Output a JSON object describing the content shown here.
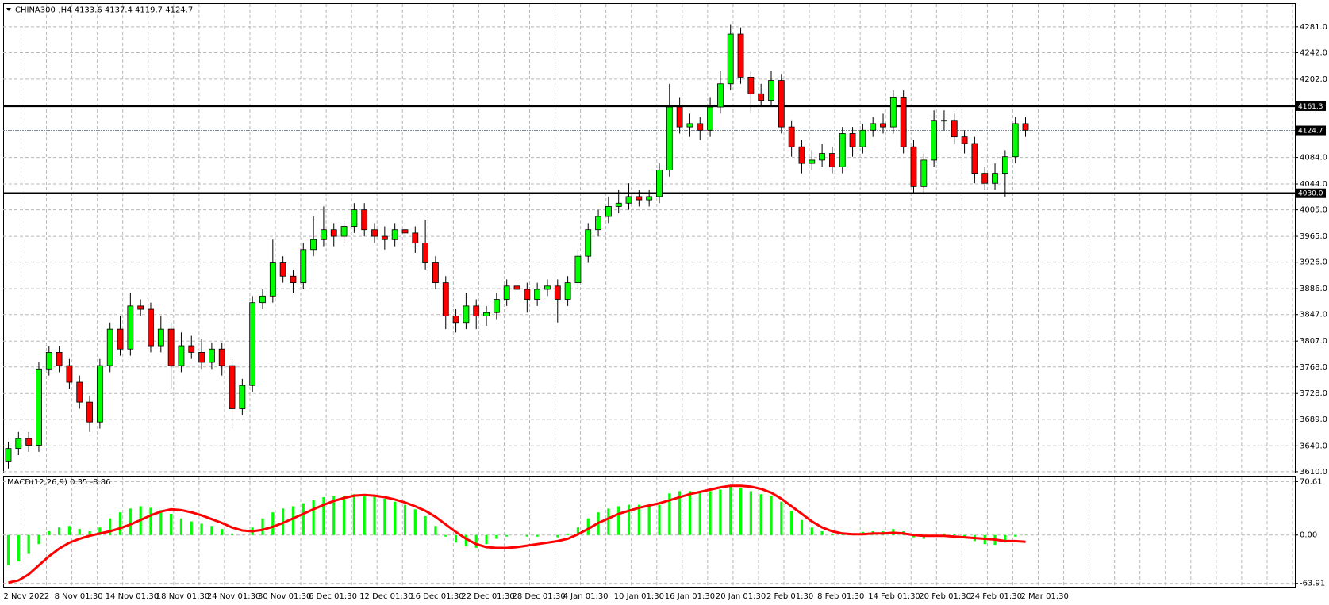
{
  "chart_data": [
    {
      "type": "candlestick",
      "title": "CHINA300-,H4  4133.6 4137.4 4119.7 4124.7",
      "categories": [
        "2 Nov 2022",
        null,
        null,
        null,
        null,
        "8 Nov 01:30",
        null,
        null,
        null,
        null,
        "14 Nov 01:30",
        null,
        null,
        null,
        null,
        "18 Nov 01:30",
        null,
        null,
        null,
        null,
        "24 Nov 01:30",
        null,
        null,
        null,
        null,
        "30 Nov 01:30",
        null,
        null,
        null,
        null,
        "6 Dec 01:30",
        null,
        null,
        null,
        null,
        "12 Dec 01:30",
        null,
        null,
        null,
        null,
        "16 Dec 01:30",
        null,
        null,
        null,
        null,
        "22 Dec 01:30",
        null,
        null,
        null,
        null,
        "28 Dec 01:30",
        null,
        null,
        null,
        null,
        "4 Jan 01:30",
        null,
        null,
        null,
        null,
        "10 Jan 01:30",
        null,
        null,
        null,
        null,
        "16 Jan 01:30",
        null,
        null,
        null,
        null,
        "20 Jan 01:30",
        null,
        null,
        null,
        null,
        "2 Feb 01:30",
        null,
        null,
        null,
        null,
        "8 Feb 01:30",
        null,
        null,
        null,
        null,
        "14 Feb 01:30",
        null,
        null,
        null,
        null,
        "20 Feb 01:30",
        null,
        null,
        null,
        null,
        "24 Feb 01:30",
        null,
        null,
        null,
        null,
        "2 Mar 01:30"
      ],
      "open": [
        3625,
        3645,
        3660,
        3650,
        3765,
        3790,
        3770,
        3745,
        3715,
        3685,
        3770,
        3825,
        3795,
        3860,
        3855,
        3800,
        3825,
        3770,
        3800,
        3790,
        3775,
        3795,
        3770,
        3705,
        3740,
        3865,
        3875,
        3925,
        3905,
        3895,
        3945,
        3960,
        3975,
        3965,
        3980,
        4005,
        3975,
        3965,
        3960,
        3975,
        3970,
        3955,
        3925,
        3895,
        3845,
        3835,
        3860,
        3845,
        3850,
        3870,
        3890,
        3885,
        3870,
        3885,
        3890,
        3870,
        3895,
        3935,
        3975,
        3995,
        4010,
        4015,
        4025,
        4020,
        4025,
        4065,
        4160,
        4130,
        4135,
        4125,
        4160,
        4195,
        4270,
        4205,
        4180,
        4170,
        4200,
        4130,
        4100,
        4075,
        4080,
        4090,
        4070,
        4120,
        4100,
        4125,
        4135,
        4130,
        4175,
        4100,
        4040,
        4080,
        4140,
        4140,
        4115,
        4105,
        4060,
        4045,
        4060,
        4085,
        4135
      ],
      "high": [
        3655,
        3670,
        3670,
        3775,
        3800,
        3800,
        3780,
        3755,
        3725,
        3780,
        3835,
        3845,
        3880,
        3870,
        3865,
        3845,
        3835,
        3820,
        3815,
        3810,
        3805,
        3805,
        3780,
        3750,
        3875,
        3885,
        3960,
        3935,
        3915,
        3955,
        3995,
        4010,
        3985,
        3990,
        4015,
        4015,
        3985,
        3980,
        3985,
        3985,
        3980,
        3990,
        3935,
        3905,
        3855,
        3880,
        3870,
        3860,
        3880,
        3900,
        3900,
        3895,
        3895,
        3900,
        3900,
        3905,
        3945,
        3985,
        4005,
        4025,
        4035,
        4045,
        4035,
        4035,
        4075,
        4195,
        4175,
        4150,
        4145,
        4175,
        4215,
        4285,
        4280,
        4215,
        4195,
        4215,
        4210,
        4140,
        4110,
        4095,
        4105,
        4100,
        4130,
        4130,
        4135,
        4145,
        4150,
        4185,
        4185,
        4110,
        4090,
        4155,
        4155,
        4150,
        4125,
        4115,
        4070,
        4075,
        4095,
        4145,
        4145
      ],
      "low": [
        3615,
        3635,
        3640,
        3640,
        3755,
        3760,
        3735,
        3705,
        3670,
        3675,
        3760,
        3785,
        3785,
        3845,
        3790,
        3790,
        3735,
        3760,
        3780,
        3765,
        3765,
        3755,
        3675,
        3695,
        3730,
        3855,
        3865,
        3895,
        3880,
        3885,
        3935,
        3950,
        3950,
        3955,
        3970,
        3965,
        3955,
        3945,
        3950,
        3955,
        3940,
        3915,
        3885,
        3825,
        3820,
        3825,
        3825,
        3830,
        3840,
        3860,
        3875,
        3850,
        3860,
        3875,
        3835,
        3860,
        3885,
        3925,
        3965,
        3985,
        4000,
        4005,
        4010,
        4010,
        4015,
        4055,
        4120,
        4115,
        4110,
        4115,
        4150,
        4185,
        4195,
        4150,
        4160,
        4160,
        4120,
        4085,
        4060,
        4065,
        4070,
        4060,
        4060,
        4085,
        4090,
        4115,
        4120,
        4120,
        4090,
        4030,
        4030,
        4070,
        4125,
        4105,
        4090,
        4045,
        4035,
        4035,
        4025,
        4075,
        4115
      ],
      "close": [
        3645,
        3660,
        3650,
        3765,
        3790,
        3770,
        3745,
        3715,
        3685,
        3770,
        3825,
        3795,
        3860,
        3855,
        3800,
        3825,
        3770,
        3800,
        3790,
        3775,
        3795,
        3770,
        3705,
        3740,
        3865,
        3875,
        3925,
        3905,
        3895,
        3945,
        3960,
        3975,
        3965,
        3980,
        4005,
        3975,
        3965,
        3960,
        3975,
        3970,
        3955,
        3925,
        3895,
        3845,
        3835,
        3860,
        3845,
        3850,
        3870,
        3890,
        3885,
        3870,
        3885,
        3890,
        3870,
        3895,
        3935,
        3975,
        3995,
        4010,
        4015,
        4025,
        4020,
        4025,
        4065,
        4160,
        4130,
        4135,
        4125,
        4160,
        4195,
        4270,
        4205,
        4180,
        4170,
        4200,
        4130,
        4100,
        4075,
        4080,
        4090,
        4070,
        4120,
        4100,
        4125,
        4135,
        4130,
        4175,
        4100,
        4040,
        4080,
        4140,
        4140,
        4115,
        4105,
        4060,
        4045,
        4060,
        4085,
        4135,
        4125
      ],
      "up_color": "#00ff00",
      "down_color": "#ff0000",
      "ylim": [
        3608.7,
        4315.5
      ],
      "yticks": [
        {
          "value": 4281,
          "label": "4281.0"
        },
        {
          "value": 4242,
          "label": "4242.0"
        },
        {
          "value": 4202,
          "label": "4202.0"
        },
        {
          "value": 4084,
          "label": "4084.0"
        },
        {
          "value": 4044,
          "label": "4044.0"
        },
        {
          "value": 4005,
          "label": "4005.0"
        },
        {
          "value": 3965,
          "label": "3965.0"
        },
        {
          "value": 3926,
          "label": "3926.0"
        },
        {
          "value": 3886,
          "label": "3886.0"
        },
        {
          "value": 3847,
          "label": "3847.0"
        },
        {
          "value": 3807,
          "label": "3807.0"
        },
        {
          "value": 3768,
          "label": "3768.0"
        },
        {
          "value": 3728,
          "label": "3728.0"
        },
        {
          "value": 3689,
          "label": "3689.0"
        },
        {
          "value": 3649,
          "label": "3649.0"
        },
        {
          "value": 3610,
          "label": "3610.0"
        }
      ],
      "levels": [
        {
          "value": 4161.3,
          "label": "4161.3"
        },
        {
          "value": 4030,
          "label": "4030.0"
        }
      ],
      "current_price": {
        "value": 4124.7,
        "label": "4124.7"
      },
      "grid": true
    },
    {
      "type": "macd",
      "title": "MACD(12,26,9) 0.35 -8.86",
      "histogram": {
        "color": "#00ff00",
        "values": [
          -40,
          -35,
          -25,
          -12,
          5,
          10,
          12,
          8,
          5,
          10,
          22,
          30,
          35,
          38,
          36,
          33,
          28,
          22,
          18,
          15,
          12,
          8,
          2,
          0,
          10,
          22,
          30,
          35,
          38,
          42,
          46,
          50,
          52,
          52,
          54,
          54,
          52,
          48,
          44,
          40,
          34,
          25,
          12,
          -2,
          -10,
          -15,
          -17,
          -12,
          -5,
          -2,
          0,
          -2,
          -2,
          0,
          -3,
          2,
          10,
          22,
          30,
          35,
          38,
          40,
          40,
          38,
          40,
          55,
          58,
          58,
          56,
          58,
          60,
          66,
          62,
          58,
          54,
          52,
          44,
          32,
          20,
          10,
          5,
          2,
          3,
          2,
          4,
          5,
          5,
          8,
          5,
          -3,
          -5,
          0,
          2,
          1,
          -2,
          -8,
          -12,
          -13,
          -10,
          -2,
          0.35
        ]
      },
      "signal": {
        "color": "#ff0000",
        "values": [
          -63,
          -60,
          -52,
          -40,
          -28,
          -18,
          -10,
          -5,
          -1,
          2,
          5,
          9,
          14,
          20,
          26,
          31,
          34,
          33,
          30,
          26,
          21,
          16,
          10,
          6,
          5,
          7,
          11,
          16,
          22,
          28,
          34,
          40,
          45,
          49,
          52,
          53,
          52,
          50,
          47,
          43,
          38,
          32,
          24,
          14,
          4,
          -5,
          -12,
          -16,
          -17,
          -17,
          -16,
          -14,
          -12,
          -10,
          -8,
          -5,
          1,
          8,
          16,
          22,
          28,
          32,
          36,
          39,
          42,
          46,
          50,
          54,
          57,
          60,
          63,
          65,
          65,
          64,
          61,
          56,
          48,
          38,
          28,
          18,
          10,
          5,
          2,
          1,
          1,
          2,
          2,
          3,
          2,
          0,
          -1,
          -1,
          -1,
          -2,
          -3,
          -4,
          -5,
          -6,
          -8,
          -8,
          -8.86
        ]
      },
      "ylim": [
        -68.4,
        77.3
      ],
      "yticks": [
        70.61,
        {
          "value": 0,
          "label": "0.00"
        },
        -63.91
      ]
    }
  ]
}
